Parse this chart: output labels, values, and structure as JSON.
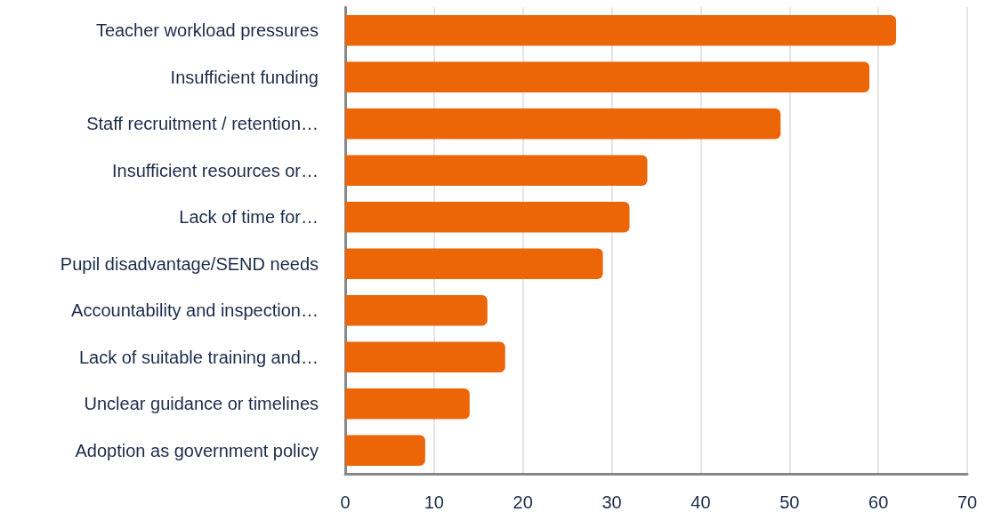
{
  "chart_data": {
    "type": "bar",
    "orientation": "horizontal",
    "categories": [
      "Teacher workload pressures",
      "Insufficient funding",
      "Staff recruitment / retention…",
      "Insufficient resources or…",
      "Lack of time for…",
      "Pupil disadvantage/SEND needs",
      "Accountability and inspection…",
      "Lack of suitable training and…",
      "Unclear guidance or timelines",
      "Adoption as government policy"
    ],
    "values": [
      62,
      59,
      49,
      34,
      32,
      29,
      16,
      18,
      14,
      9
    ],
    "color": "#ec6608",
    "xlim": [
      0,
      70
    ],
    "xticks": [
      0,
      10,
      20,
      30,
      40,
      50,
      60,
      70
    ],
    "grid": "x"
  }
}
